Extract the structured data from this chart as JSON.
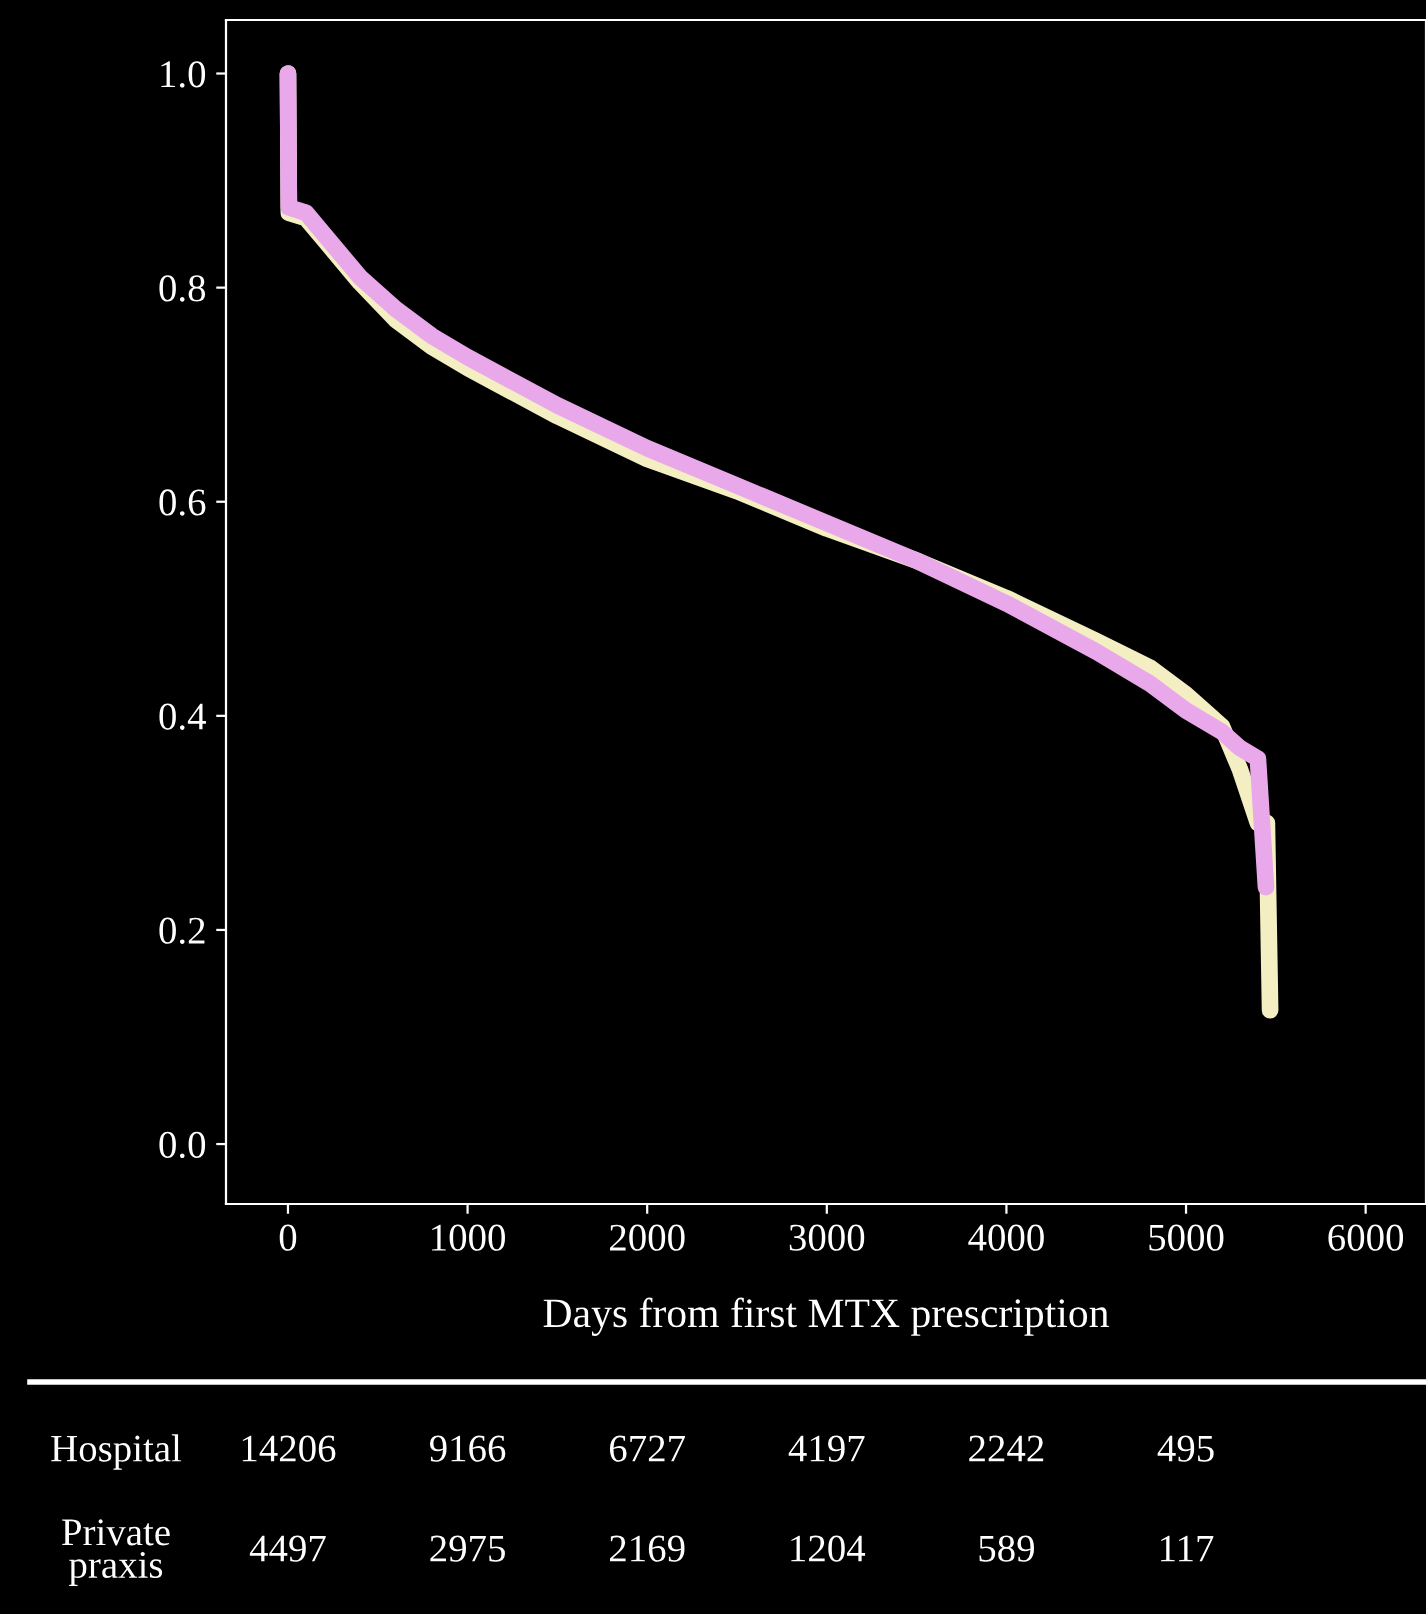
{
  "chart_data": {
    "type": "line",
    "xlabel": "Days from first MTX prescription",
    "x": [
      0,
      5,
      100,
      200,
      400,
      600,
      800,
      1000,
      1500,
      2000,
      2500,
      3000,
      3500,
      4000,
      4500,
      4800,
      5000,
      5200,
      5300,
      5400,
      5445
    ],
    "series": [
      {
        "color": "#f3efc2",
        "x": [
          0,
          5,
          100,
          200,
          400,
          600,
          800,
          1000,
          1500,
          2000,
          2500,
          3000,
          3500,
          4000,
          4500,
          4800,
          5000,
          5200,
          5300,
          5400,
          5450,
          5468
        ],
        "values": [
          1.0,
          0.87,
          0.865,
          0.845,
          0.805,
          0.77,
          0.745,
          0.725,
          0.68,
          0.64,
          0.61,
          0.575,
          0.545,
          0.51,
          0.47,
          0.445,
          0.42,
          0.39,
          0.35,
          0.3,
          0.3,
          0.125
        ]
      },
      {
        "color": "#e9a8ea",
        "values": [
          1.0,
          0.875,
          0.87,
          0.85,
          0.81,
          0.78,
          0.755,
          0.735,
          0.69,
          0.65,
          0.615,
          0.58,
          0.545,
          0.505,
          0.46,
          0.43,
          0.405,
          0.385,
          0.37,
          0.36,
          0.24
        ]
      }
    ],
    "xlim": [
      -345,
      6336
    ],
    "xticks": [
      0,
      1000,
      2000,
      3000,
      4000,
      5000,
      6000
    ],
    "ylim": [
      -0.056,
      1.05
    ],
    "yticks": [
      {
        "value": 0,
        "label": "0.0"
      },
      0.2,
      0.4,
      0.6,
      0.8,
      {
        "value": 1,
        "label": "1.0"
      }
    ],
    "grid": false,
    "legend": false,
    "annotations": [
      "Hospital",
      "14206",
      "9166",
      "6727",
      "4197",
      "2242",
      "495",
      "Private\npraxis",
      "4497",
      "2975",
      "2169",
      "1204",
      "589",
      "117"
    ]
  }
}
